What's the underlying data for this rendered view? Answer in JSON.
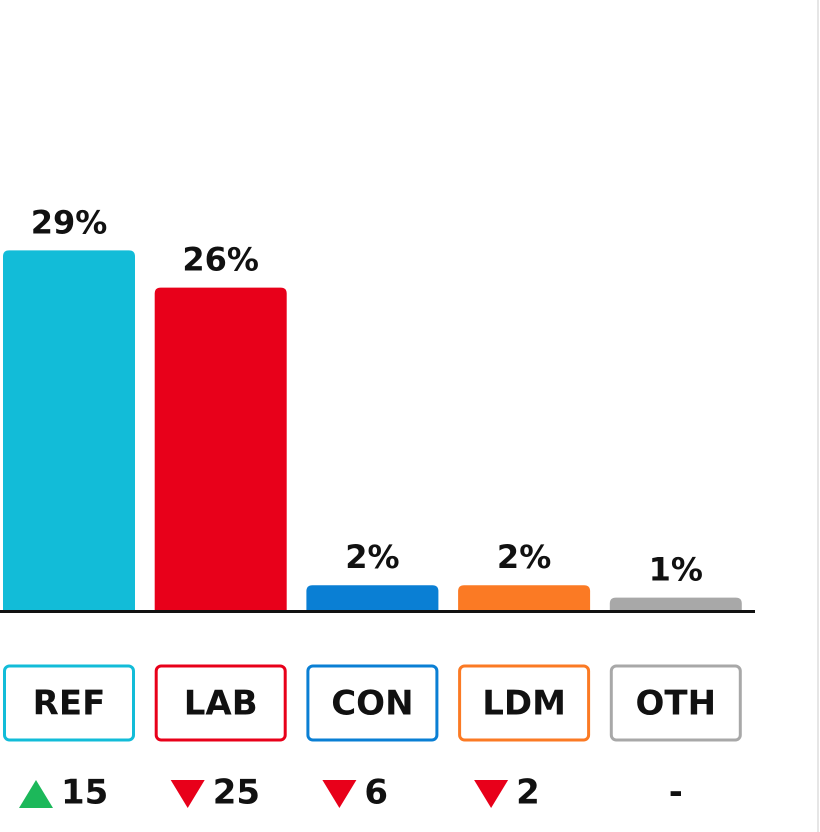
{
  "chart_data": {
    "type": "bar",
    "categories": [
      "REF",
      "LAB",
      "CON",
      "LDM",
      "OTH"
    ],
    "values": [
      29,
      26,
      2,
      2,
      1
    ],
    "value_labels": [
      "29%",
      "26%",
      "2%",
      "2%",
      "1%"
    ],
    "colors": [
      "#12bcd8",
      "#e8001a",
      "#0a7fd4",
      "#fb7a24",
      "#a8a8a8"
    ],
    "changes": [
      "15",
      "25",
      "6",
      "2",
      "-"
    ],
    "change_directions": [
      "up",
      "down",
      "down",
      "down",
      "none"
    ],
    "change_colors": {
      "up": "#1cb85a",
      "down": "#e8001a"
    }
  }
}
